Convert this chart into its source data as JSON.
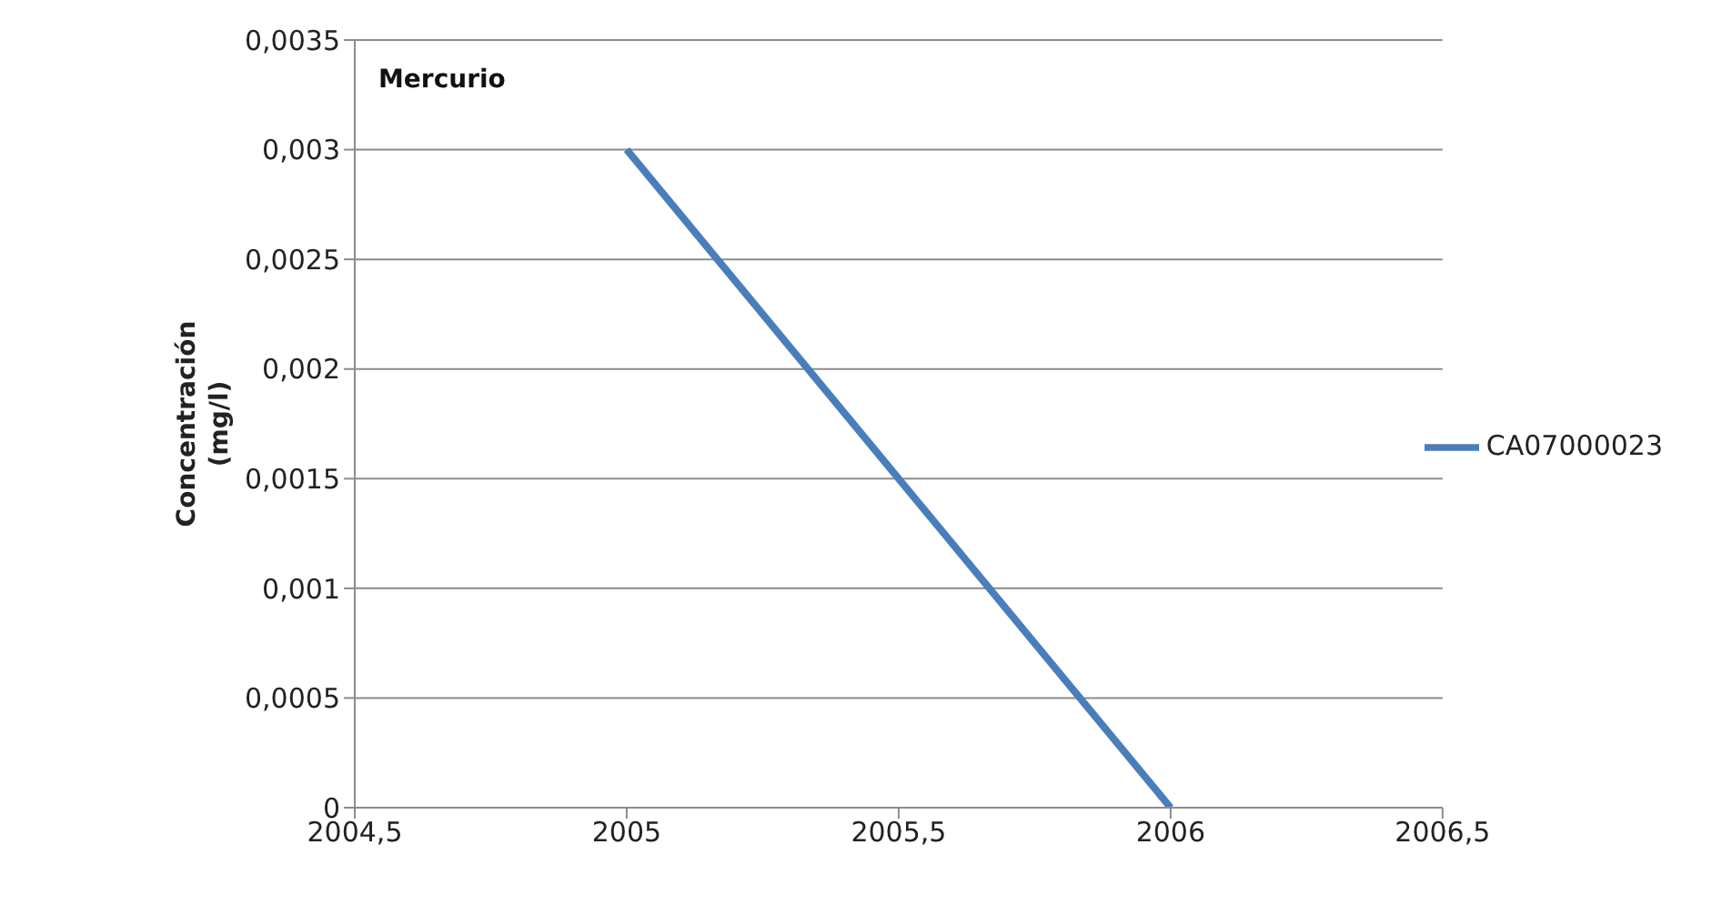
{
  "chart_data": {
    "type": "line",
    "title": "Mercurio",
    "ylabel": "Concentración (mg/l)",
    "x": [
      2005,
      2006
    ],
    "series": [
      {
        "name": "CA07000023",
        "color": "#4a7ebb",
        "values": [
          0.003,
          0
        ]
      }
    ],
    "xlim": [
      2004.5,
      2006.5
    ],
    "xticks": [
      {
        "value": 2004.5,
        "label": "2004,5"
      },
      2005,
      {
        "value": 2005.5,
        "label": "2005,5"
      },
      2006,
      {
        "value": 2006.5,
        "label": "2006,5"
      }
    ],
    "ylim": [
      0,
      0.0035
    ],
    "yticks": [
      0,
      {
        "value": 0.0005,
        "label": "0,0005"
      },
      {
        "value": 0.001,
        "label": "0,001"
      },
      {
        "value": 0.0015,
        "label": "0,0015"
      },
      {
        "value": 0.002,
        "label": "0,002"
      },
      {
        "value": 0.0025,
        "label": "0,0025"
      },
      {
        "value": 0.003,
        "label": "0,003"
      },
      {
        "value": 0.0035,
        "label": "0,0035"
      }
    ],
    "grid": "y",
    "legend": "right",
    "marker": "none",
    "line_style": "solid"
  }
}
